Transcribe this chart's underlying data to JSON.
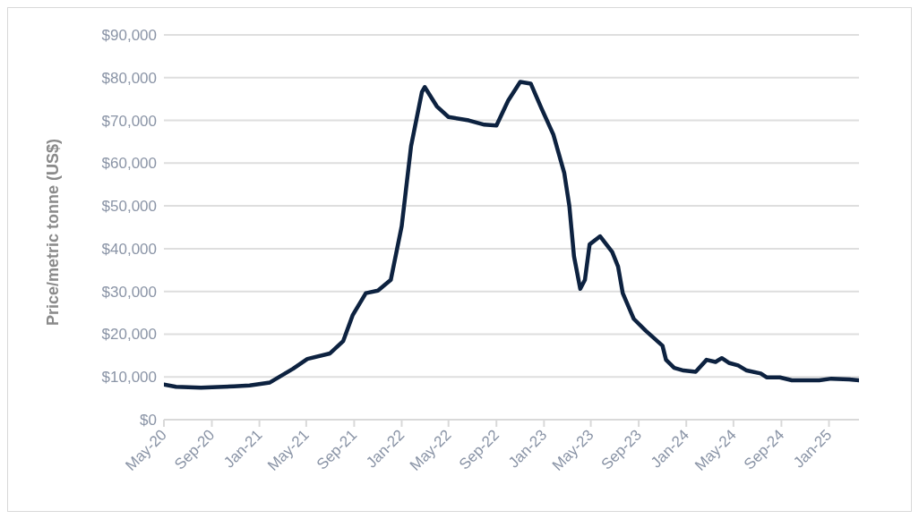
{
  "chart_data": {
    "type": "line",
    "ylabel": "Price/metric tonne (US$)",
    "x": [
      "2020-05-01",
      "2020-06-01",
      "2020-08-04",
      "2020-10-28",
      "2020-12-07",
      "2021-01-28",
      "2021-03-28",
      "2021-05-04",
      "2021-07-01",
      "2021-08-04",
      "2021-08-28",
      "2021-10-01",
      "2021-11-01",
      "2021-12-04",
      "2022-01-01",
      "2022-01-25",
      "2022-02-22",
      "2022-03-01",
      "2022-04-01",
      "2022-05-01",
      "2022-06-22",
      "2022-08-01",
      "2022-09-01",
      "2022-10-01",
      "2022-11-01",
      "2022-11-28",
      "2022-12-25",
      "2023-01-25",
      "2023-02-22",
      "2023-03-07",
      "2023-03-19",
      "2023-04-04",
      "2023-04-16",
      "2023-04-28",
      "2023-05-25",
      "2023-06-25",
      "2023-07-10",
      "2023-07-22",
      "2023-08-19",
      "2023-09-19",
      "2023-11-01",
      "2023-11-10",
      "2023-12-01",
      "2023-12-25",
      "2024-01-25",
      "2024-02-22",
      "2024-03-16",
      "2024-04-01",
      "2024-04-19",
      "2024-05-13",
      "2024-06-04",
      "2024-07-10",
      "2024-07-25",
      "2024-08-28",
      "2024-09-28",
      "2024-12-07",
      "2025-01-07",
      "2025-02-22",
      "2025-03-19"
    ],
    "series": [
      {
        "color": "#0d2240",
        "values": [
          8200,
          7700,
          7500,
          7800,
          8000,
          8700,
          11900,
          14200,
          15500,
          18400,
          24400,
          29600,
          30200,
          32700,
          45300,
          64000,
          76700,
          77800,
          73300,
          70800,
          70000,
          69000,
          68800,
          74600,
          79000,
          78600,
          72900,
          66700,
          57700,
          50000,
          38200,
          30600,
          32700,
          41000,
          42900,
          39200,
          35800,
          29600,
          23600,
          20800,
          17300,
          14000,
          12100,
          11500,
          11200,
          14000,
          13500,
          14400,
          13300,
          12700,
          11500,
          10800,
          9900,
          9900,
          9200,
          9200,
          9600,
          9400,
          9200
        ]
      }
    ],
    "xlim": [
      "2020-05-01",
      "2025-03-19"
    ],
    "xticks": [
      {
        "value": "2020-05-01",
        "label": "May-20"
      },
      {
        "value": "2020-09-01",
        "label": "Sep-20"
      },
      {
        "value": "2021-01-01",
        "label": "Jan-21"
      },
      {
        "value": "2021-05-01",
        "label": "May-21"
      },
      {
        "value": "2021-09-01",
        "label": "Sep-21"
      },
      {
        "value": "2022-01-01",
        "label": "Jan-22"
      },
      {
        "value": "2022-05-01",
        "label": "May-22"
      },
      {
        "value": "2022-09-01",
        "label": "Sep-22"
      },
      {
        "value": "2023-01-01",
        "label": "Jan-23"
      },
      {
        "value": "2023-05-01",
        "label": "May-23"
      },
      {
        "value": "2023-09-01",
        "label": "Sep-23"
      },
      {
        "value": "2024-01-01",
        "label": "Jan-24"
      },
      {
        "value": "2024-05-01",
        "label": "May-24"
      },
      {
        "value": "2024-09-01",
        "label": "Sep-24"
      },
      {
        "value": "2025-01-01",
        "label": "Jan-25"
      }
    ],
    "ylim": [
      0,
      90000
    ],
    "yticks": [
      {
        "value": 0,
        "label": "$0"
      },
      {
        "value": 10000,
        "label": "$10,000"
      },
      {
        "value": 20000,
        "label": "$20,000"
      },
      {
        "value": 30000,
        "label": "$30,000"
      },
      {
        "value": 40000,
        "label": "$40,000"
      },
      {
        "value": 50000,
        "label": "$50,000"
      },
      {
        "value": 60000,
        "label": "$60,000"
      },
      {
        "value": 70000,
        "label": "$70,000"
      },
      {
        "value": 80000,
        "label": "$80,000"
      },
      {
        "value": 90000,
        "label": "$90,000"
      }
    ],
    "grid": "y",
    "legend": false,
    "marker": "none",
    "line_style": "solid"
  }
}
